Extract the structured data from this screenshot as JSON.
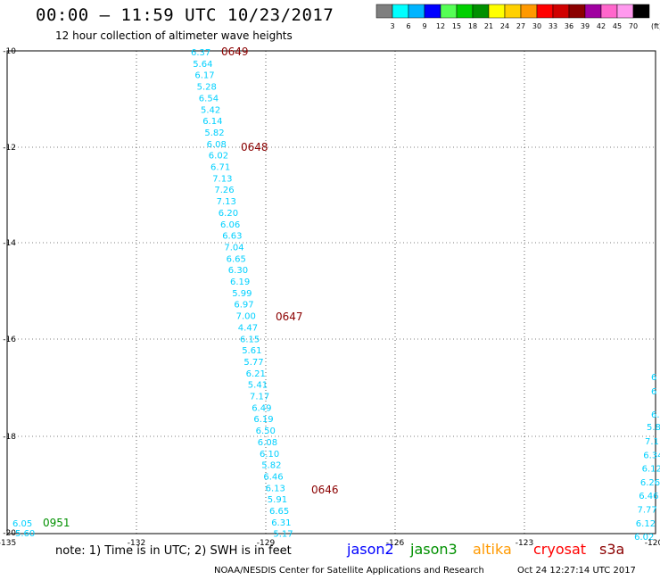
{
  "header": {
    "title": "00:00 – 11:59 UTC 10/23/2017",
    "subtitle": "12 hour collection of altimeter wave heights"
  },
  "color_scale": {
    "unit": "(ft)",
    "labels": [
      "3",
      "6",
      "9",
      "12",
      "15",
      "18",
      "21",
      "24",
      "27",
      "30",
      "33",
      "36",
      "39",
      "42",
      "45",
      "70"
    ],
    "colors": [
      "#7f7f7f",
      "#00ffff",
      "#00b4ff",
      "#0000ff",
      "#55ff55",
      "#00d000",
      "#009000",
      "#ffff00",
      "#ffd000",
      "#ff9900",
      "#ff0000",
      "#d00000",
      "#8b0000",
      "#a000a0",
      "#ff66cc",
      "#ff99ee",
      "#000000"
    ]
  },
  "map": {
    "lat_labels": [
      "-10",
      "-12",
      "-14",
      "-16",
      "-18",
      "-20"
    ],
    "lon_labels": [
      "-135",
      "-132",
      "-129",
      "-126",
      "-123",
      "-120"
    ],
    "tracks": [
      {
        "mission": "cryosat",
        "color": "#00d0ff",
        "values": [
          "6.37",
          "5.64",
          "6.17",
          "5.28",
          "6.54",
          "5.42",
          "6.14",
          "5.82",
          "6.08",
          "6.02",
          "6.71",
          "7.13",
          "7.26",
          "7.13",
          "6.20",
          "6.06",
          "6.63",
          "7.04",
          "6.65",
          "6.30",
          "6.19",
          "5.99",
          "6.97",
          "7.00",
          "4.47",
          "6.15",
          "5.61",
          "5.77",
          "6.21",
          "5.41",
          "7.17",
          "6.49",
          "6.19",
          "6.50",
          "6.08",
          "6.10",
          "5.82",
          "6.46",
          "6.13",
          "5.91",
          "6.65",
          "6.31",
          "5.17"
        ]
      },
      {
        "mission": "jason3",
        "color": "#00d0ff",
        "values": [
          "6.05",
          "5.60"
        ]
      },
      {
        "mission": "jason3",
        "color": "#00d0ff",
        "values": [
          "7.1",
          "6.34",
          "6.12",
          "6.26",
          "6.46",
          "7.77",
          "6.12",
          "6.02"
        ]
      }
    ],
    "time_labels": [
      {
        "text": "0649",
        "color": "#8b0000"
      },
      {
        "text": "0648",
        "color": "#8b0000"
      },
      {
        "text": "0647",
        "color": "#8b0000"
      },
      {
        "text": "0646",
        "color": "#8b0000"
      },
      {
        "text": "0951",
        "color": "#009000"
      }
    ],
    "edge_partial_labels": [
      "6",
      "6",
      "6.",
      "5.8"
    ]
  },
  "footer": {
    "note": "note: 1) Time is in UTC; 2) SWH is in feet",
    "missions": [
      {
        "name": "jason2",
        "color": "#0000ff"
      },
      {
        "name": "jason3",
        "color": "#009000"
      },
      {
        "name": "altika",
        "color": "#ff9900"
      },
      {
        "name": "cryosat",
        "color": "#ff0000"
      },
      {
        "name": "s3a",
        "color": "#8b0000"
      }
    ],
    "credit": "NOAA/NESDIS Center for Satellite Applications and Research",
    "timestamp": "Oct 24 12:27:14 UTC 2017"
  }
}
